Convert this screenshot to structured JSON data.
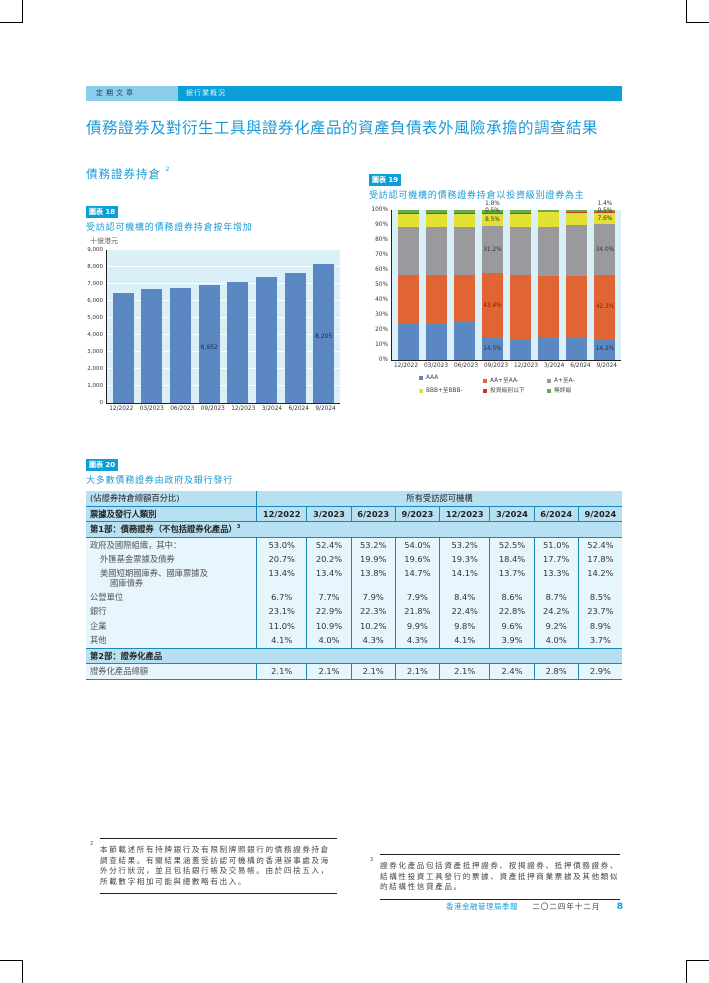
{
  "header": {
    "section": "定期文章",
    "subsection": "銀行業概況",
    "title": "債務證券及對衍生工具與證券化產品的資產負債表外風險承擔的調查結果"
  },
  "section_title": "債務證券持倉",
  "section_title_note": "2",
  "figure18": {
    "tag": "圖表 18",
    "title": "受訪認可機構的債務證券持倉按年增加"
  },
  "figure19": {
    "tag": "圖表 19",
    "title": "受訪認可機構的債務證券持倉以投資級別證券為主"
  },
  "figure20": {
    "tag": "圖表 20",
    "title": "大多數債務證券由政府及銀行發行"
  },
  "chart_data": [
    {
      "type": "bar",
      "title": "受訪認可機構的債務證券持倉按年增加",
      "ylabel": "十億港元",
      "xlabel": "",
      "categories": [
        "12/2022",
        "03/2023",
        "06/2023",
        "09/2023",
        "12/2023",
        "3/2024",
        "6/2024",
        "9/2024"
      ],
      "values": [
        6480,
        6720,
        6780,
        6952,
        7130,
        7430,
        7670,
        8205
      ],
      "data_labels": {
        "09/2023": "6,952",
        "9/2024": "8,205"
      },
      "ylim": [
        0,
        9000
      ],
      "yticks": [
        "0",
        "1,000",
        "2,000",
        "3,000",
        "4,000",
        "5,000",
        "6,000",
        "7,000",
        "8,000",
        "9,000"
      ],
      "grid": true,
      "color": "#5b87c2"
    },
    {
      "type": "bar",
      "stacked": true,
      "title": "受訪認可機構的債務證券持倉以投資級別證券為主",
      "categories": [
        "12/2022",
        "03/2023",
        "06/2023",
        "09/2023",
        "12/2023",
        "3/2024",
        "6/2024",
        "9/2024"
      ],
      "ylim": [
        0,
        100
      ],
      "yticks": [
        "0%",
        "10%",
        "20%",
        "30%",
        "40%",
        "50%",
        "60%",
        "70%",
        "80%",
        "90%",
        "100%"
      ],
      "legend_position": "bottom",
      "series": [
        {
          "name": "AAA",
          "color": "#5b87c2",
          "values": [
            24.0,
            25.0,
            25.5,
            14.5,
            14.0,
            14.5,
            14.5,
            14.2
          ]
        },
        {
          "name": "AA+至AA-",
          "color": "#e06434",
          "values": [
            32.5,
            31.5,
            31.0,
            43.4,
            42.5,
            41.5,
            41.5,
            42.3
          ]
        },
        {
          "name": "A+至A-",
          "color": "#9a9a9e",
          "values": [
            32.0,
            32.0,
            32.0,
            31.2,
            32.5,
            33.0,
            34.0,
            34.0
          ]
        },
        {
          "name": "BBB+至BBB-",
          "color": "#e2e032",
          "values": [
            9.0,
            9.0,
            9.0,
            8.5,
            8.5,
            9.5,
            8.0,
            7.6
          ]
        },
        {
          "name": "投資級別以下",
          "color": "#c0392b",
          "values": [
            0.8,
            0.8,
            0.8,
            0.5,
            0.8,
            0.0,
            0.6,
            0.5
          ]
        },
        {
          "name": "無評級",
          "color": "#6aa84f",
          "values": [
            1.7,
            1.7,
            1.7,
            1.8,
            1.7,
            1.5,
            1.4,
            1.4
          ]
        }
      ],
      "data_labels": {
        "09/2023": [
          "14.5%",
          "43.4%",
          "31.2%",
          "8.5%",
          "0.5%",
          "1.8%"
        ],
        "9/2024": [
          "14.2%",
          "42.3%",
          "34.0%",
          "7.6%",
          "0.5%",
          "1.4%"
        ]
      }
    },
    {
      "type": "table",
      "title": "大多數債務證券由政府及銀行發行",
      "caption": "(佔證券持倉總額百分比)",
      "group_header": "所有受訪認可機構",
      "row_header_label": "票據及發行人類別",
      "columns": [
        "12/2022",
        "3/2023",
        "6/2023",
        "9/2023",
        "12/2023",
        "3/2024",
        "6/2024",
        "9/2024"
      ],
      "sections": [
        {
          "title": "第1部：債務證券（不包括證券化產品）",
          "note": "3",
          "rows": [
            {
              "label": "政府及國際組織，其中：",
              "values": [
                "53.0%",
                "52.4%",
                "53.2%",
                "54.0%",
                "53.2%",
                "52.5%",
                "51.0%",
                "52.4%"
              ]
            },
            {
              "label": "外匯基金票據及債券",
              "values": [
                "20.7%",
                "20.2%",
                "19.9%",
                "19.6%",
                "19.3%",
                "18.4%",
                "17.7%",
                "17.8%"
              ]
            },
            {
              "label": "美國短期國庫券、國庫票據及國庫債券",
              "values": [
                "13.4%",
                "13.4%",
                "13.8%",
                "14.7%",
                "14.1%",
                "13.7%",
                "13.3%",
                "14.2%"
              ]
            },
            {
              "label": "公營單位",
              "values": [
                "6.7%",
                "7.7%",
                "7.9%",
                "7.9%",
                "8.4%",
                "8.6%",
                "8.7%",
                "8.5%"
              ]
            },
            {
              "label": "銀行",
              "values": [
                "23.1%",
                "22.9%",
                "22.3%",
                "21.8%",
                "22.4%",
                "22.8%",
                "24.2%",
                "23.7%"
              ]
            },
            {
              "label": "企業",
              "values": [
                "11.0%",
                "10.9%",
                "10.2%",
                "9.9%",
                "9.8%",
                "9.6%",
                "9.2%",
                "8.9%"
              ]
            },
            {
              "label": "其他",
              "values": [
                "4.1%",
                "4.0%",
                "4.3%",
                "4.3%",
                "4.1%",
                "3.9%",
                "4.0%",
                "3.7%"
              ]
            }
          ]
        },
        {
          "title": "第2部：證券化產品",
          "rows": [
            {
              "label": "證券化產品總額",
              "values": [
                "2.1%",
                "2.1%",
                "2.1%",
                "2.1%",
                "2.1%",
                "2.4%",
                "2.8%",
                "2.9%"
              ]
            }
          ]
        }
      ]
    }
  ],
  "table": {
    "caption": "(佔證券持倉總額百分比)",
    "group_header": "所有受訪認可機構",
    "row_header_label": "票據及發行人類別",
    "columns": [
      "12/2022",
      "3/2023",
      "6/2023",
      "9/2023",
      "12/2023",
      "3/2024",
      "6/2024",
      "9/2024"
    ],
    "part1_title": "第1部：債務證券（不包括證券化產品）",
    "part1_note": "3",
    "part2_title": "第2部：證券化產品",
    "rows": [
      {
        "label": "政府及國際組織，其中：",
        "values": [
          "53.0%",
          "52.4%",
          "53.2%",
          "54.0%",
          "53.2%",
          "52.5%",
          "51.0%",
          "52.4%"
        ]
      },
      {
        "label": "外匯基金票據及債券",
        "values": [
          "20.7%",
          "20.2%",
          "19.9%",
          "19.6%",
          "19.3%",
          "18.4%",
          "17.7%",
          "17.8%"
        ]
      },
      {
        "label": "美國短期國庫券、國庫票據及",
        "label2": "國庫債券",
        "values": [
          "13.4%",
          "13.4%",
          "13.8%",
          "14.7%",
          "14.1%",
          "13.7%",
          "13.3%",
          "14.2%"
        ]
      },
      {
        "label": "公營單位",
        "values": [
          "6.7%",
          "7.7%",
          "7.9%",
          "7.9%",
          "8.4%",
          "8.6%",
          "8.7%",
          "8.5%"
        ]
      },
      {
        "label": "銀行",
        "values": [
          "23.1%",
          "22.9%",
          "22.3%",
          "21.8%",
          "22.4%",
          "22.8%",
          "24.2%",
          "23.7%"
        ]
      },
      {
        "label": "企業",
        "values": [
          "11.0%",
          "10.9%",
          "10.2%",
          "9.9%",
          "9.8%",
          "9.6%",
          "9.2%",
          "8.9%"
        ]
      },
      {
        "label": "其他",
        "values": [
          "4.1%",
          "4.0%",
          "4.3%",
          "4.3%",
          "4.1%",
          "3.9%",
          "4.0%",
          "3.7%"
        ]
      },
      {
        "label": "證券化產品總額",
        "values": [
          "2.1%",
          "2.1%",
          "2.1%",
          "2.1%",
          "2.1%",
          "2.4%",
          "2.8%",
          "2.9%"
        ]
      }
    ]
  },
  "footnotes": [
    {
      "num": "2",
      "text": "本節載述所有持牌銀行及有限制牌照銀行的債務證券持倉調查結果。有關結果涵蓋受訪認可機構的香港辦事處及海外分行狀況，並且包括銀行帳及交易帳。由於四捨五入，所載數字相加可能與總數略有出入。"
    },
    {
      "num": "3",
      "text": "證券化產品包括資產抵押證券、按揭證券、抵押債務證券、結構性投資工具發行的票據、資產抵押商業票據及其他類似的結構性信貸產品。"
    }
  ],
  "footer": {
    "org": "香港金融管理局季報",
    "date": "二〇二四年十二月",
    "page": "8"
  }
}
